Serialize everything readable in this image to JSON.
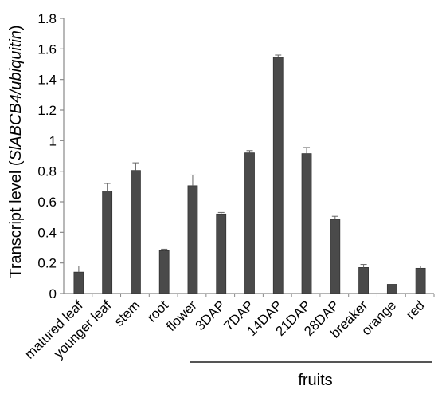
{
  "chart_data": {
    "type": "bar",
    "ylabel_prefix": "Transcript level (",
    "ylabel_gene": "SlABCB4/ubiquitin",
    "ylabel_suffix": ")",
    "ylim": [
      0,
      1.8
    ],
    "yticks": [
      "0",
      "0.2",
      "0.4",
      "0.6",
      "0.8",
      "1",
      "1.2",
      "1.4",
      "1.6",
      "1.8"
    ],
    "categories": [
      "matured leaf",
      "younger leaf",
      "stem",
      "root",
      "flower",
      "3DAP",
      "7DAP",
      "14DAP",
      "21DAP",
      "28DAP",
      "breaker",
      "orange",
      "red"
    ],
    "values": [
      0.14,
      0.67,
      0.805,
      0.28,
      0.705,
      0.52,
      0.92,
      1.545,
      0.915,
      0.485,
      0.17,
      0.06,
      0.165
    ],
    "errors": [
      0.04,
      0.05,
      0.05,
      0.01,
      0.07,
      0.01,
      0.015,
      0.015,
      0.04,
      0.02,
      0.02,
      0.0,
      0.015
    ],
    "group_label": "fruits",
    "bar_color": "#4a4a4a",
    "grid": false
  }
}
